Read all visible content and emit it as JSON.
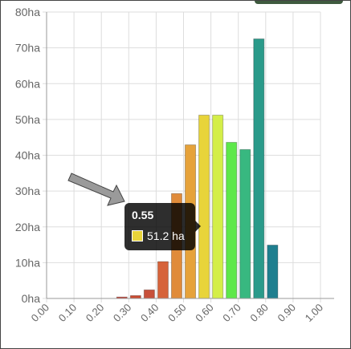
{
  "chart_data": {
    "type": "bar",
    "x_ticks": [
      "0.00",
      "0.10",
      "0.20",
      "0.30",
      "0.40",
      "0.50",
      "0.60",
      "0.70",
      "0.80",
      "0.90",
      "1.00"
    ],
    "y_ticks": [
      "0ha",
      "10ha",
      "20ha",
      "30ha",
      "40ha",
      "50ha",
      "60ha",
      "70ha",
      "80ha"
    ],
    "ylim": [
      0,
      80
    ],
    "xlim": [
      0,
      1
    ],
    "grid": true,
    "bin_width": 0.05,
    "bins": [
      {
        "x": 0.275,
        "value": 0.4,
        "color": "#c43c2e"
      },
      {
        "x": 0.325,
        "value": 0.8,
        "color": "#c94a30"
      },
      {
        "x": 0.375,
        "value": 2.4,
        "color": "#c8503a"
      },
      {
        "x": 0.425,
        "value": 10.3,
        "color": "#d6633a"
      },
      {
        "x": 0.475,
        "value": 29.3,
        "color": "#e08b3a"
      },
      {
        "x": 0.525,
        "value": 42.9,
        "color": "#e6a23a"
      },
      {
        "x": 0.575,
        "value": 51.2,
        "color": "#e8d43a"
      },
      {
        "x": 0.625,
        "value": 51.2,
        "color": "#d4ee48"
      },
      {
        "x": 0.675,
        "value": 43.6,
        "color": "#5ee84a"
      },
      {
        "x": 0.725,
        "value": 41.6,
        "color": "#38b880"
      },
      {
        "x": 0.775,
        "value": 72.5,
        "color": "#2a9a8a"
      },
      {
        "x": 0.825,
        "value": 14.9,
        "color": "#1f7f8f"
      }
    ]
  },
  "tooltip": {
    "title": "0.55",
    "value_label": "51.2 ha",
    "swatch_color": "#e8d43a"
  }
}
